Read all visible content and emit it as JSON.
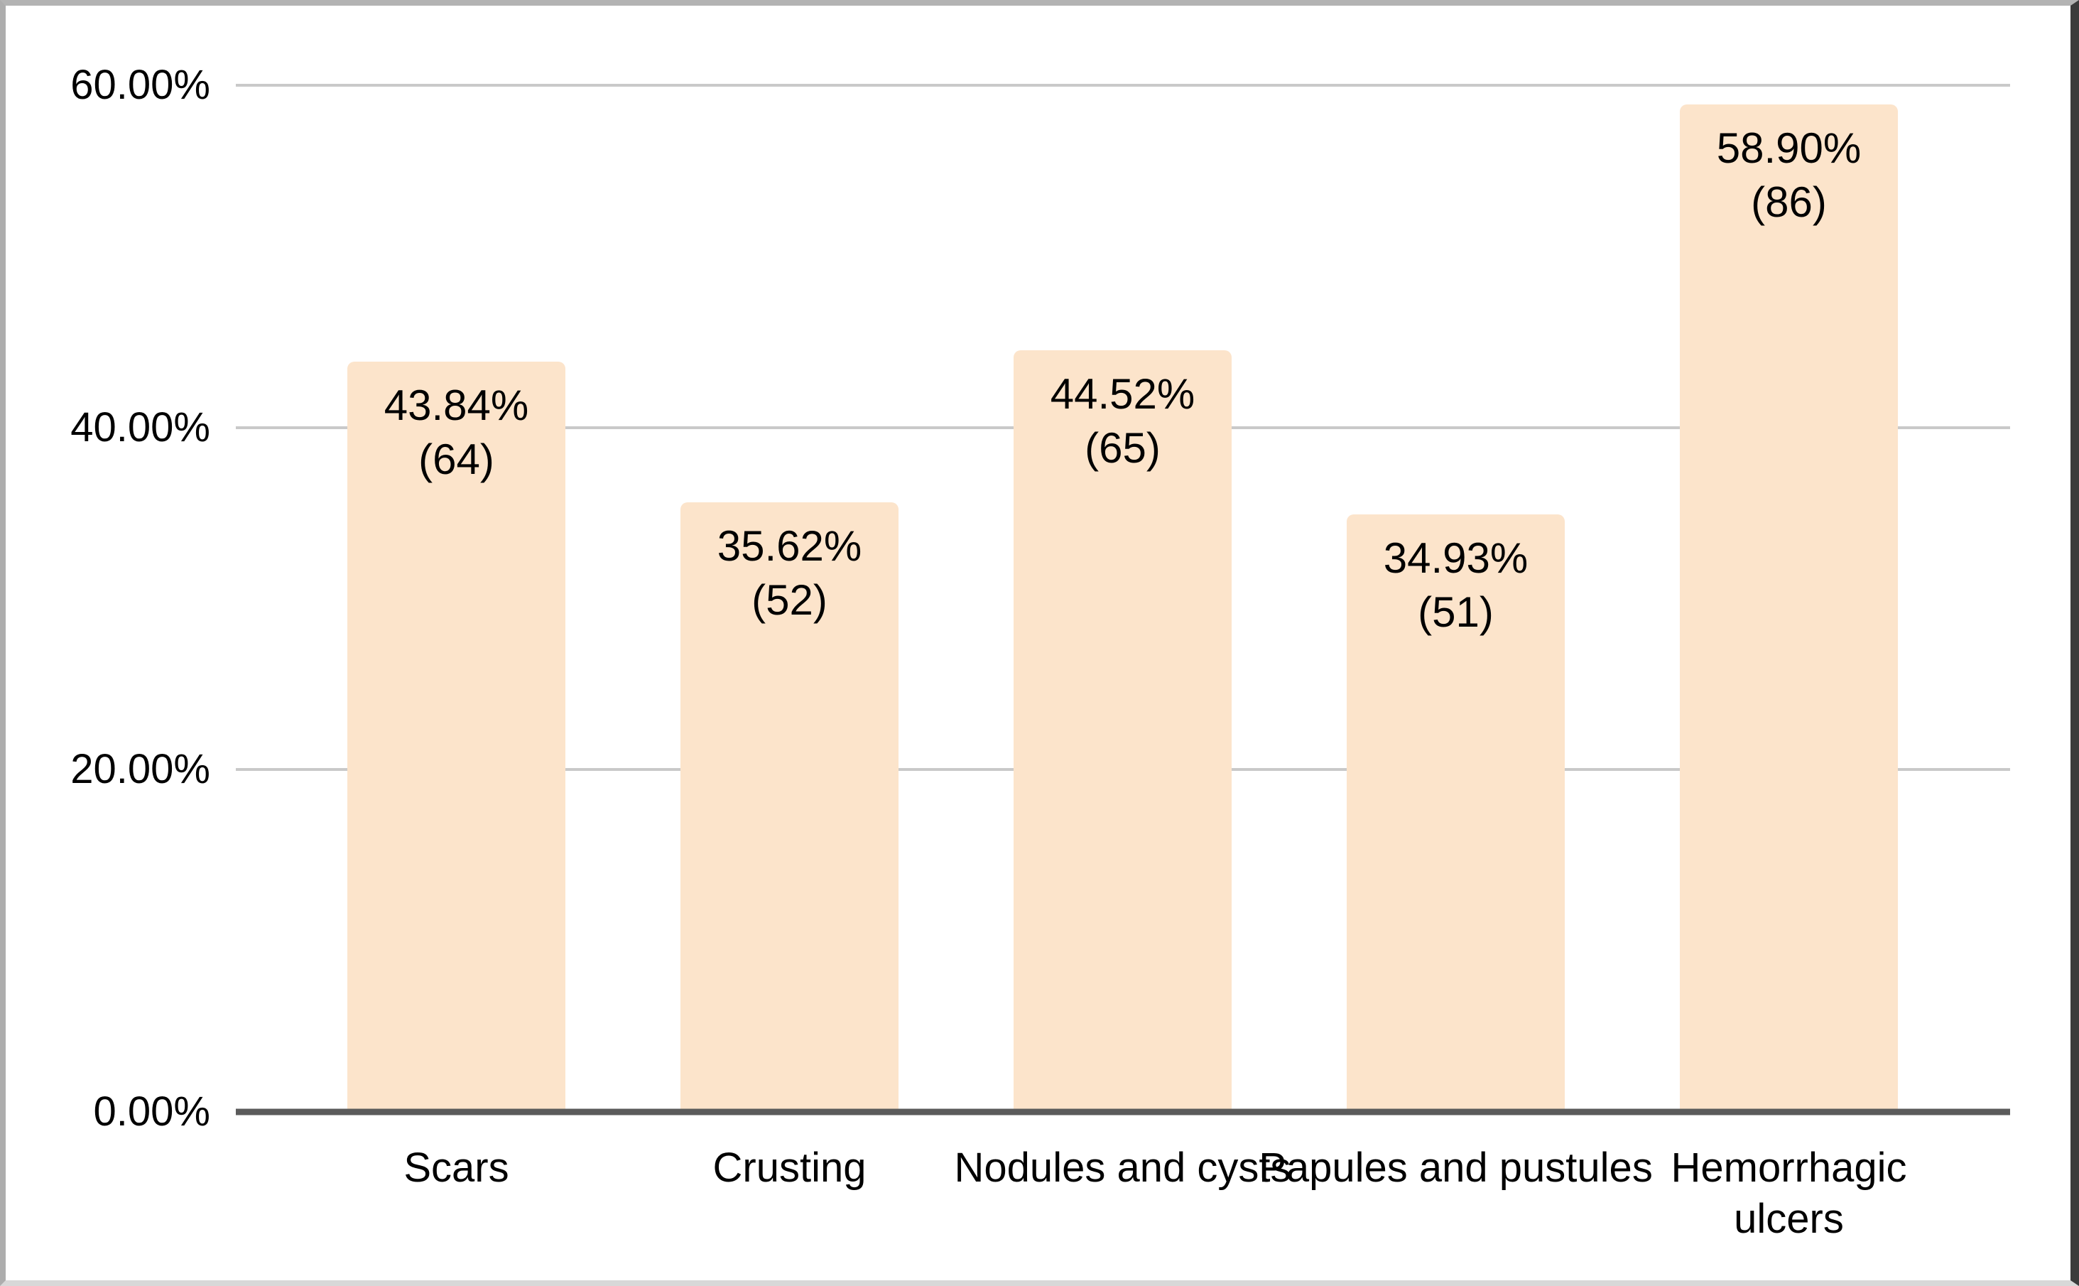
{
  "chart_data": {
    "type": "bar",
    "title": "",
    "xlabel": "",
    "ylabel": "",
    "categories": [
      "Scars",
      "Crusting",
      "Nodules and cysts",
      "Papules and pustules",
      "Hemorrhagic ulcers"
    ],
    "values": [
      43.84,
      35.62,
      44.52,
      34.93,
      58.9
    ],
    "counts": [
      64,
      52,
      65,
      51,
      86
    ],
    "value_labels": [
      "43.84%",
      "35.62%",
      "44.52%",
      "34.93%",
      "58.90%"
    ],
    "count_labels": [
      "(64)",
      "(52)",
      "(65)",
      "(51)",
      "(86)"
    ],
    "yticks": [
      "60.00%",
      "40.00%",
      "20.00%",
      "0.00%"
    ],
    "ytick_values": [
      60,
      40,
      20,
      0
    ],
    "ylim": [
      0,
      60
    ],
    "grid": true,
    "legend": "none",
    "bar_color": "#fce4cb",
    "gridline_color": "#c9c9c9",
    "axis_line_color": "#5b5b5b",
    "text_color": "#000000",
    "x_label_wrap": [
      false,
      false,
      false,
      false,
      true
    ]
  }
}
